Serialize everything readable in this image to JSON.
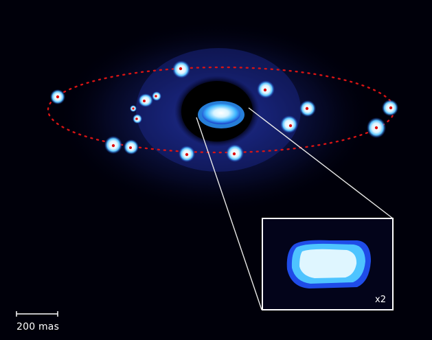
{
  "image": {
    "description_colors": {
      "background": "#000008",
      "glow": "#1a2a8a",
      "moon_core": "#ffffff",
      "moon_halo": "#3aa0ff",
      "orbit": "#e01010",
      "marker": "#e01010",
      "inset_border": "#ffffff",
      "leader_lines": "#e0e0e0"
    },
    "scale_bar": {
      "label": "200 mas"
    },
    "inset": {
      "magnification_label": "x2"
    }
  }
}
